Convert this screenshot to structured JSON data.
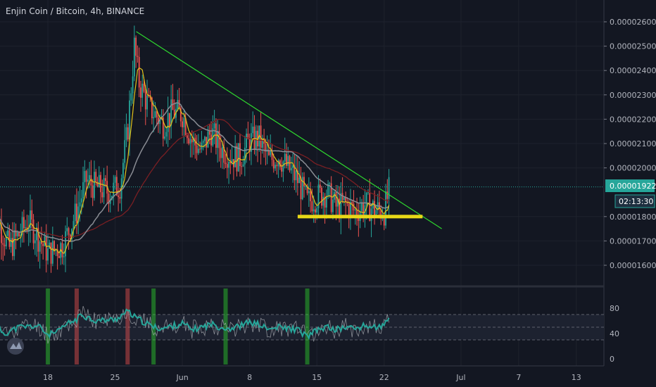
{
  "header": {
    "title": "Enjin Coin / Bitcoin, 4h, BINANCE"
  },
  "colors": {
    "background": "#131722",
    "up": "#26a69a",
    "down": "#ef5350",
    "trendline": "#2ed42e",
    "support": "#e8d817",
    "price_line": "#26a69a",
    "rsi_line": "#26a69a"
  },
  "price_badge": {
    "price": "0.00001922",
    "countdown": "02:13:30"
  },
  "icons": {
    "watermark": "tradingview-logo-icon"
  },
  "chart_data": [
    {
      "type": "candlestick",
      "title": "Enjin Coin / Bitcoin, 4h, BINANCE",
      "interval": "4h",
      "y_ticks": [
        "0.00002600",
        "0.00002500",
        "0.00002400",
        "0.00002300",
        "0.00002200",
        "0.00002100",
        "0.00002000",
        "0.00001800",
        "0.00001700",
        "0.00001600"
      ],
      "x_ticks": [
        "18",
        "25",
        "Jun",
        "8",
        "15",
        "22",
        "Jul",
        "7",
        "13"
      ],
      "ylim": [
        1.55e-05,
        2.62e-05
      ],
      "last_price": 1.922e-05,
      "series_close_path": [
        [
          12.0,
          1.85e-05
        ],
        [
          14.0,
          1.67e-05
        ],
        [
          16.0,
          1.78e-05
        ],
        [
          18.0,
          1.65e-05
        ],
        [
          19.5,
          1.68e-05
        ],
        [
          21.0,
          1.82e-05
        ],
        [
          22.0,
          1.95e-05
        ],
        [
          23.0,
          1.92e-05
        ],
        [
          24.5,
          1.9e-05
        ],
        [
          25.5,
          1.93e-05
        ],
        [
          26.3,
          2.15e-05
        ],
        [
          27.0,
          2.5e-05
        ],
        [
          27.5,
          2.35e-05
        ],
        [
          28.5,
          2.25e-05
        ],
        [
          30.0,
          2.18e-05
        ],
        [
          31.0,
          2.23e-05
        ],
        [
          32.0,
          2.22e-05
        ],
        [
          33.0,
          2.11e-05
        ],
        [
          34.0,
          2.07e-05
        ],
        [
          35.0,
          2.15e-05
        ],
        [
          36.0,
          2.08e-05
        ],
        [
          37.0,
          2.05e-05
        ],
        [
          38.0,
          2.04e-05
        ],
        [
          39.0,
          2.11e-05
        ],
        [
          40.0,
          2.12e-05
        ],
        [
          41.0,
          2.03e-05
        ],
        [
          42.0,
          2.05e-05
        ],
        [
          43.0,
          2e-05
        ],
        [
          44.0,
          1.95e-05
        ],
        [
          45.0,
          1.86e-05
        ],
        [
          46.0,
          1.88e-05
        ],
        [
          47.0,
          1.9e-05
        ],
        [
          48.0,
          1.84e-05
        ],
        [
          49.0,
          1.85e-05
        ],
        [
          50.0,
          1.82e-05
        ],
        [
          51.0,
          1.85e-05
        ],
        [
          52.0,
          1.83e-05
        ],
        [
          53.0,
          1.82e-05
        ],
        [
          53.6,
          1.92e-05
        ]
      ],
      "overlays": [
        {
          "kind": "trendline",
          "from": [
            27.2,
            2.56e-05
          ],
          "to": [
            59.0,
            1.75e-05
          ]
        },
        {
          "kind": "support",
          "from": [
            44.0,
            1.8e-05
          ],
          "to": [
            57.0,
            1.8e-05
          ]
        },
        {
          "kind": "price_line",
          "value": 1.922e-05
        }
      ]
    },
    {
      "type": "line",
      "panel": "oscillator",
      "y_ticks": [
        "80",
        "40",
        "0"
      ],
      "ylim": [
        -5,
        100
      ],
      "bands": [
        70,
        50,
        30
      ],
      "series_path": [
        [
          12.0,
          58
        ],
        [
          13.5,
          40
        ],
        [
          15.0,
          50
        ],
        [
          17.0,
          52
        ],
        [
          18.0,
          38
        ],
        [
          19.0,
          42
        ],
        [
          20.0,
          55
        ],
        [
          21.0,
          62
        ],
        [
          21.5,
          70
        ],
        [
          23.0,
          60
        ],
        [
          25.0,
          62
        ],
        [
          26.3,
          75
        ],
        [
          27.0,
          66
        ],
        [
          28.0,
          58
        ],
        [
          29.0,
          50
        ],
        [
          30.0,
          48
        ],
        [
          31.0,
          52
        ],
        [
          32.0,
          56
        ],
        [
          33.0,
          46
        ],
        [
          34.0,
          50
        ],
        [
          35.0,
          55
        ],
        [
          36.0,
          50
        ],
        [
          37.0,
          48
        ],
        [
          38.0,
          52
        ],
        [
          39.0,
          58
        ],
        [
          40.0,
          54
        ],
        [
          41.0,
          46
        ],
        [
          42.0,
          50
        ],
        [
          43.0,
          48
        ],
        [
          44.0,
          46
        ],
        [
          45.0,
          35
        ],
        [
          46.0,
          45
        ],
        [
          47.0,
          50
        ],
        [
          48.0,
          46
        ],
        [
          49.0,
          50
        ],
        [
          50.0,
          48
        ],
        [
          51.0,
          52
        ],
        [
          52.0,
          50
        ],
        [
          53.0,
          52
        ],
        [
          53.6,
          66
        ]
      ],
      "highlights": [
        {
          "x": 18.0,
          "color": "#2ed42e"
        },
        {
          "x": 21.0,
          "color": "#ef5350"
        },
        {
          "x": 26.3,
          "color": "#ef5350"
        },
        {
          "x": 29.0,
          "color": "#2ed42e"
        },
        {
          "x": 36.5,
          "color": "#2ed42e"
        },
        {
          "x": 45.0,
          "color": "#2ed42e"
        }
      ]
    }
  ]
}
